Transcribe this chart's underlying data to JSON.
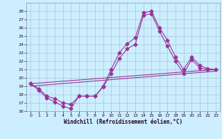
{
  "bg_color": "#cceeff",
  "grid_color": "#aabbcc",
  "line_color": "#993399",
  "xlabel": "Windchill (Refroidissement éolien,°C)",
  "ylim": [
    16,
    29
  ],
  "xlim": [
    -0.5,
    23.5
  ],
  "yticks": [
    16,
    17,
    18,
    19,
    20,
    21,
    22,
    23,
    24,
    25,
    26,
    27,
    28
  ],
  "xticks": [
    0,
    1,
    2,
    3,
    4,
    5,
    6,
    7,
    8,
    9,
    10,
    11,
    12,
    13,
    14,
    15,
    16,
    17,
    18,
    19,
    20,
    21,
    22,
    23
  ],
  "series1_x": [
    0,
    1,
    2,
    3,
    4,
    5,
    6,
    7,
    8,
    9,
    10,
    11,
    12,
    13,
    14,
    15,
    16,
    17,
    18,
    19,
    20,
    21,
    22,
    23
  ],
  "series1_y": [
    19.3,
    18.5,
    17.6,
    17.1,
    16.6,
    16.3,
    17.8,
    17.8,
    17.8,
    19.0,
    21.0,
    23.0,
    24.1,
    24.8,
    27.8,
    28.0,
    26.0,
    24.5,
    22.5,
    21.0,
    22.5,
    21.5,
    21.1,
    21.0
  ],
  "series2_x": [
    0,
    1,
    2,
    3,
    4,
    5,
    6,
    7,
    8,
    9,
    10,
    11,
    12,
    13,
    14,
    15,
    16,
    17,
    18,
    19,
    20,
    21,
    22,
    23
  ],
  "series2_y": [
    19.3,
    18.7,
    17.8,
    17.5,
    17.0,
    16.8,
    17.8,
    17.8,
    17.8,
    18.9,
    20.5,
    22.3,
    23.5,
    24.0,
    27.5,
    27.7,
    25.6,
    23.8,
    22.0,
    20.5,
    22.2,
    21.2,
    21.0,
    21.0
  ],
  "trend1_x": [
    0,
    23
  ],
  "trend1_y": [
    19.3,
    21.0
  ],
  "trend2_x": [
    0,
    23
  ],
  "trend2_y": [
    19.0,
    20.8
  ]
}
